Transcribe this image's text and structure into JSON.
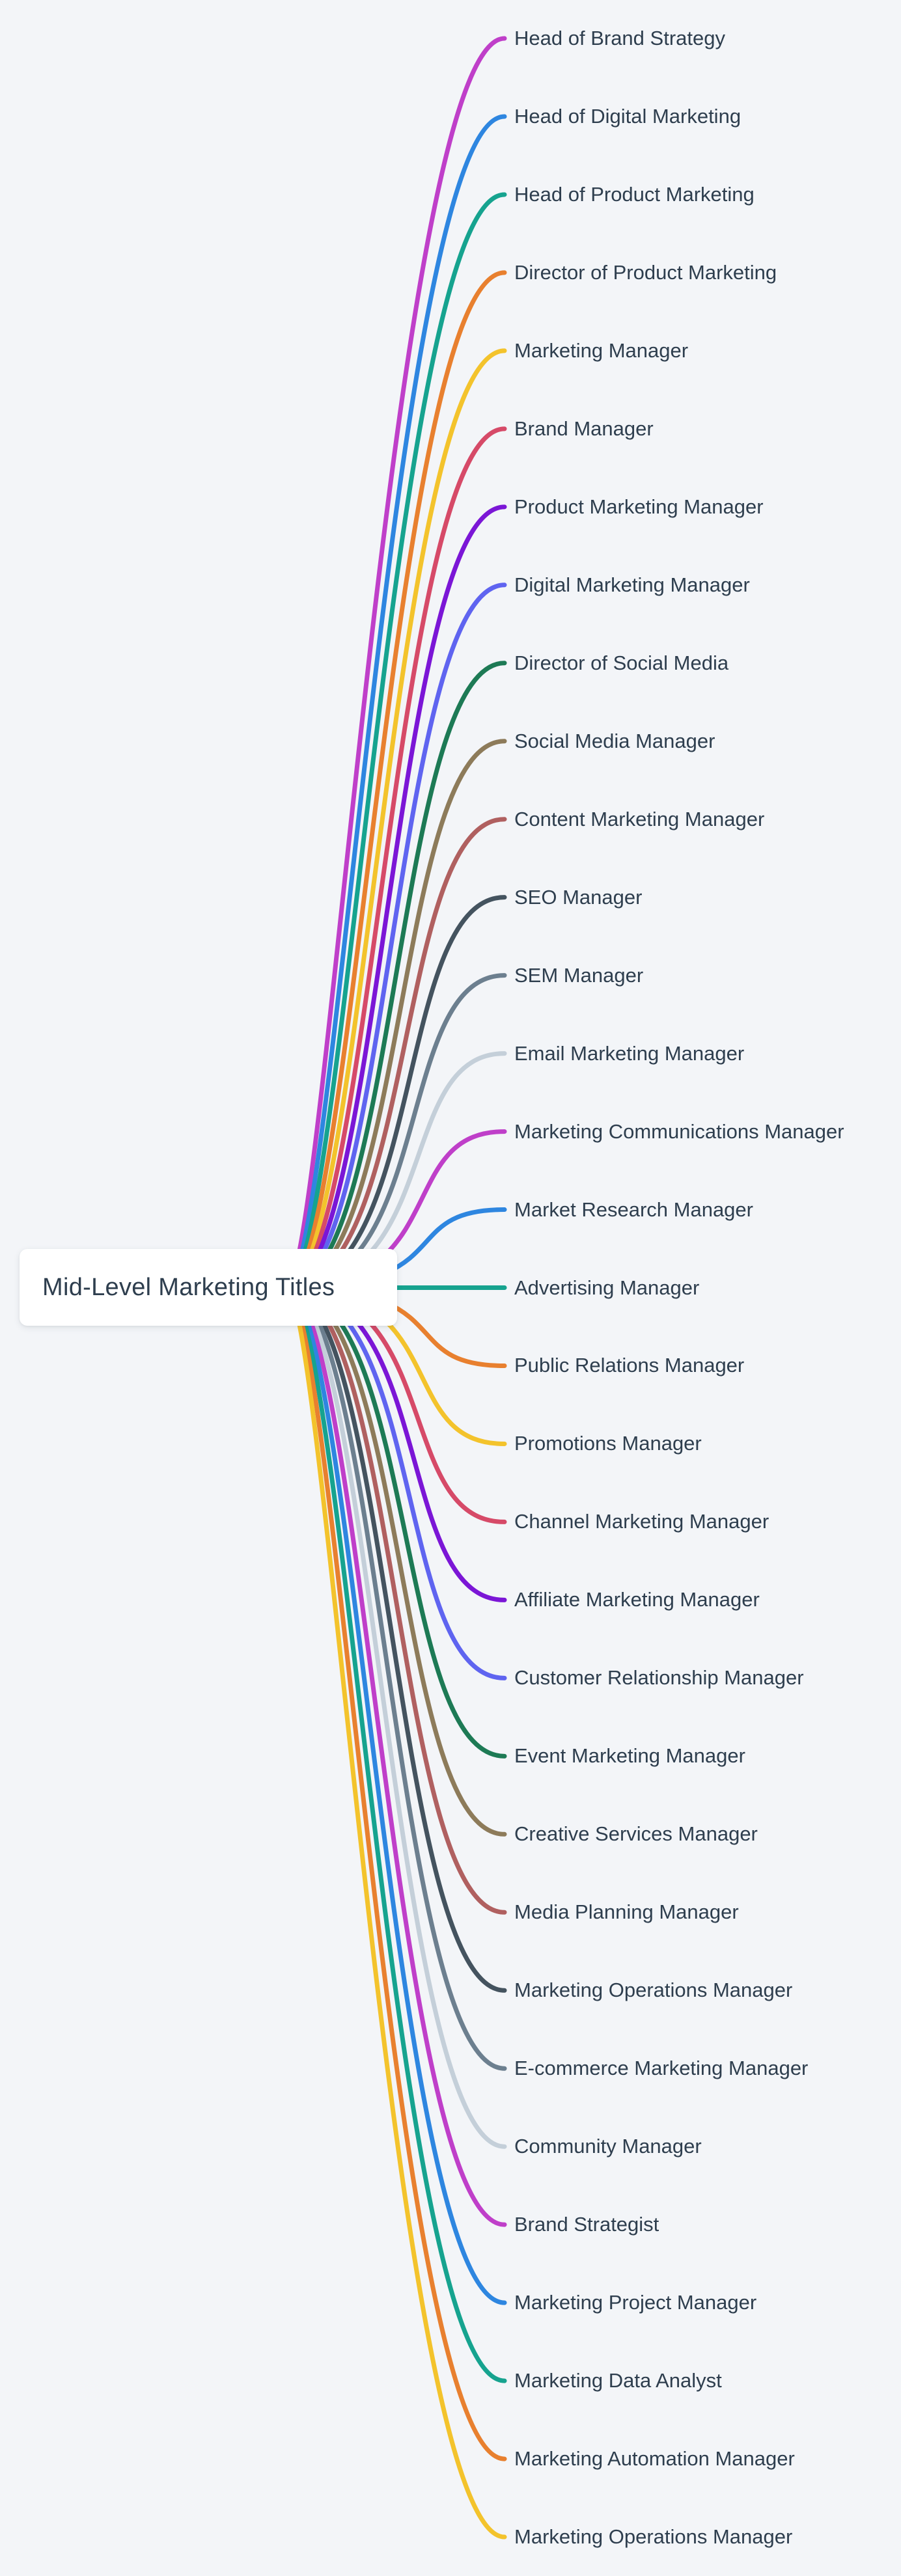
{
  "canvas": {
    "background_color": "#f3f5f8"
  },
  "root_node": {
    "label": "Mid-Level Marketing Titles",
    "background_color": "#ffffff",
    "text_color": "#2e3e4e"
  },
  "branches": [
    {
      "label": "Head of Brand Strategy",
      "color": "#bf3fc9"
    },
    {
      "label": "Head of Digital Marketing",
      "color": "#2e86e0"
    },
    {
      "label": "Head of Product Marketing",
      "color": "#16a38f"
    },
    {
      "label": "Director of Product Marketing",
      "color": "#e8802f"
    },
    {
      "label": "Marketing Manager",
      "color": "#f3c32c"
    },
    {
      "label": "Brand Manager",
      "color": "#d64a68"
    },
    {
      "label": "Product Marketing Manager",
      "color": "#7b16d6"
    },
    {
      "label": "Digital Marketing Manager",
      "color": "#5f64f0"
    },
    {
      "label": "Director of Social Media",
      "color": "#1d7a55"
    },
    {
      "label": "Social Media Manager",
      "color": "#8d7b5a"
    },
    {
      "label": "Content Marketing Manager",
      "color": "#b06060"
    },
    {
      "label": "SEO Manager",
      "color": "#44535f"
    },
    {
      "label": "SEM Manager",
      "color": "#6c7f8f"
    },
    {
      "label": "Email Marketing Manager",
      "color": "#c4cfd9"
    },
    {
      "label": "Marketing Communications Manager",
      "color": "#bf3fc9"
    },
    {
      "label": "Market Research Manager",
      "color": "#2e86e0"
    },
    {
      "label": "Advertising Manager",
      "color": "#16a38f"
    },
    {
      "label": "Public Relations Manager",
      "color": "#e8802f"
    },
    {
      "label": "Promotions Manager",
      "color": "#f3c32c"
    },
    {
      "label": "Channel Marketing Manager",
      "color": "#d64a68"
    },
    {
      "label": "Affiliate Marketing Manager",
      "color": "#7b16d6"
    },
    {
      "label": "Customer Relationship Manager",
      "color": "#5f64f0"
    },
    {
      "label": "Event Marketing Manager",
      "color": "#1d7a55"
    },
    {
      "label": "Creative Services Manager",
      "color": "#8d7b5a"
    },
    {
      "label": "Media Planning Manager",
      "color": "#b06060"
    },
    {
      "label": "Marketing Operations Manager",
      "color": "#44535f"
    },
    {
      "label": "E-commerce Marketing Manager",
      "color": "#6c7f8f"
    },
    {
      "label": "Community Manager",
      "color": "#c4cfd9"
    },
    {
      "label": "Brand Strategist",
      "color": "#bf3fc9"
    },
    {
      "label": "Marketing Project Manager",
      "color": "#2e86e0"
    },
    {
      "label": "Marketing Data Analyst",
      "color": "#16a38f"
    },
    {
      "label": "Marketing Automation Manager",
      "color": "#e8802f"
    },
    {
      "label": "Marketing Operations Manager",
      "color": "#f3c32c"
    }
  ]
}
